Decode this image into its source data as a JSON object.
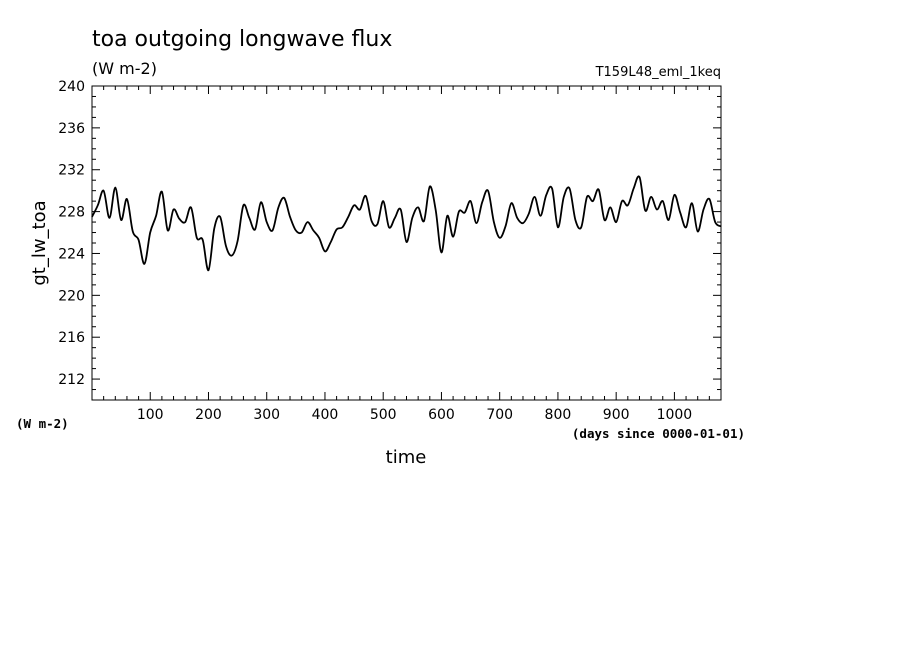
{
  "chart_data": {
    "type": "line",
    "title": "toa outgoing longwave flux",
    "subtitle": "(W m-2)",
    "run_label": "T159L48_eml_1keq",
    "xlabel": "time",
    "x_units": "(days since 0000-01-01)",
    "ylabel": "gt_lw_toa",
    "y_units": "(W m-2)",
    "xlim": [
      0,
      1080
    ],
    "ylim": [
      210,
      240
    ],
    "x_ticks": [
      "100",
      "200",
      "300",
      "400",
      "500",
      "600",
      "700",
      "800",
      "900",
      "1000"
    ],
    "y_ticks": [
      "212",
      "216",
      "220",
      "224",
      "228",
      "232",
      "236",
      "240"
    ],
    "grid": false,
    "line_color": "#000000",
    "series": [
      {
        "x": [
          0,
          10,
          20,
          30,
          40,
          50,
          60,
          70,
          80,
          90,
          100,
          110,
          120,
          130,
          140,
          150,
          160,
          170,
          180,
          190,
          200,
          210,
          220,
          230,
          240,
          250,
          260,
          270,
          280,
          290,
          300,
          310,
          320,
          330,
          340,
          350,
          360,
          370,
          380,
          390,
          400,
          410,
          420,
          430,
          440,
          450,
          460,
          470,
          480,
          490,
          500,
          510,
          520,
          530,
          540,
          550,
          560,
          570,
          580,
          590,
          600,
          610,
          620,
          630,
          640,
          650,
          660,
          670,
          680,
          690,
          700,
          710,
          720,
          730,
          740,
          750,
          760,
          770,
          780,
          790,
          800,
          810,
          820,
          830,
          840,
          850,
          860,
          870,
          880,
          890,
          900,
          910,
          920,
          930,
          940,
          950,
          960,
          970,
          980,
          990,
          1000,
          1010,
          1020,
          1030,
          1040,
          1050,
          1060,
          1070,
          1080
        ],
        "values": [
          227.5,
          228.6,
          230.0,
          227.4,
          230.3,
          227.2,
          229.2,
          226.1,
          225.3,
          223.0,
          226.0,
          227.6,
          229.9,
          226.2,
          228.2,
          227.3,
          227.0,
          228.4,
          225.5,
          225.3,
          222.4,
          226.4,
          227.5,
          224.7,
          223.8,
          225.2,
          228.6,
          227.4,
          226.3,
          228.9,
          227.0,
          226.2,
          228.4,
          229.3,
          227.5,
          226.2,
          226.0,
          227.0,
          226.2,
          225.5,
          224.2,
          225.1,
          226.3,
          226.5,
          227.5,
          228.6,
          228.2,
          229.5,
          227.1,
          226.8,
          229.0,
          226.5,
          227.4,
          228.2,
          225.1,
          227.4,
          228.4,
          227.1,
          230.4,
          228.2,
          224.1,
          227.6,
          225.6,
          228.0,
          227.9,
          229.0,
          226.9,
          228.9,
          230.0,
          227.0,
          225.5,
          226.6,
          228.8,
          227.4,
          226.9,
          227.8,
          229.4,
          227.6,
          229.6,
          230.2,
          226.5,
          229.4,
          230.2,
          227.2,
          226.5,
          229.4,
          229.0,
          230.1,
          227.2,
          228.4,
          227.0,
          229.0,
          228.6,
          230.2,
          231.3,
          228.1,
          229.4,
          228.2,
          229.0,
          227.2,
          229.6,
          227.9,
          226.5,
          228.8,
          226.1,
          228.2,
          229.2,
          227.0,
          226.6
        ]
      }
    ]
  }
}
